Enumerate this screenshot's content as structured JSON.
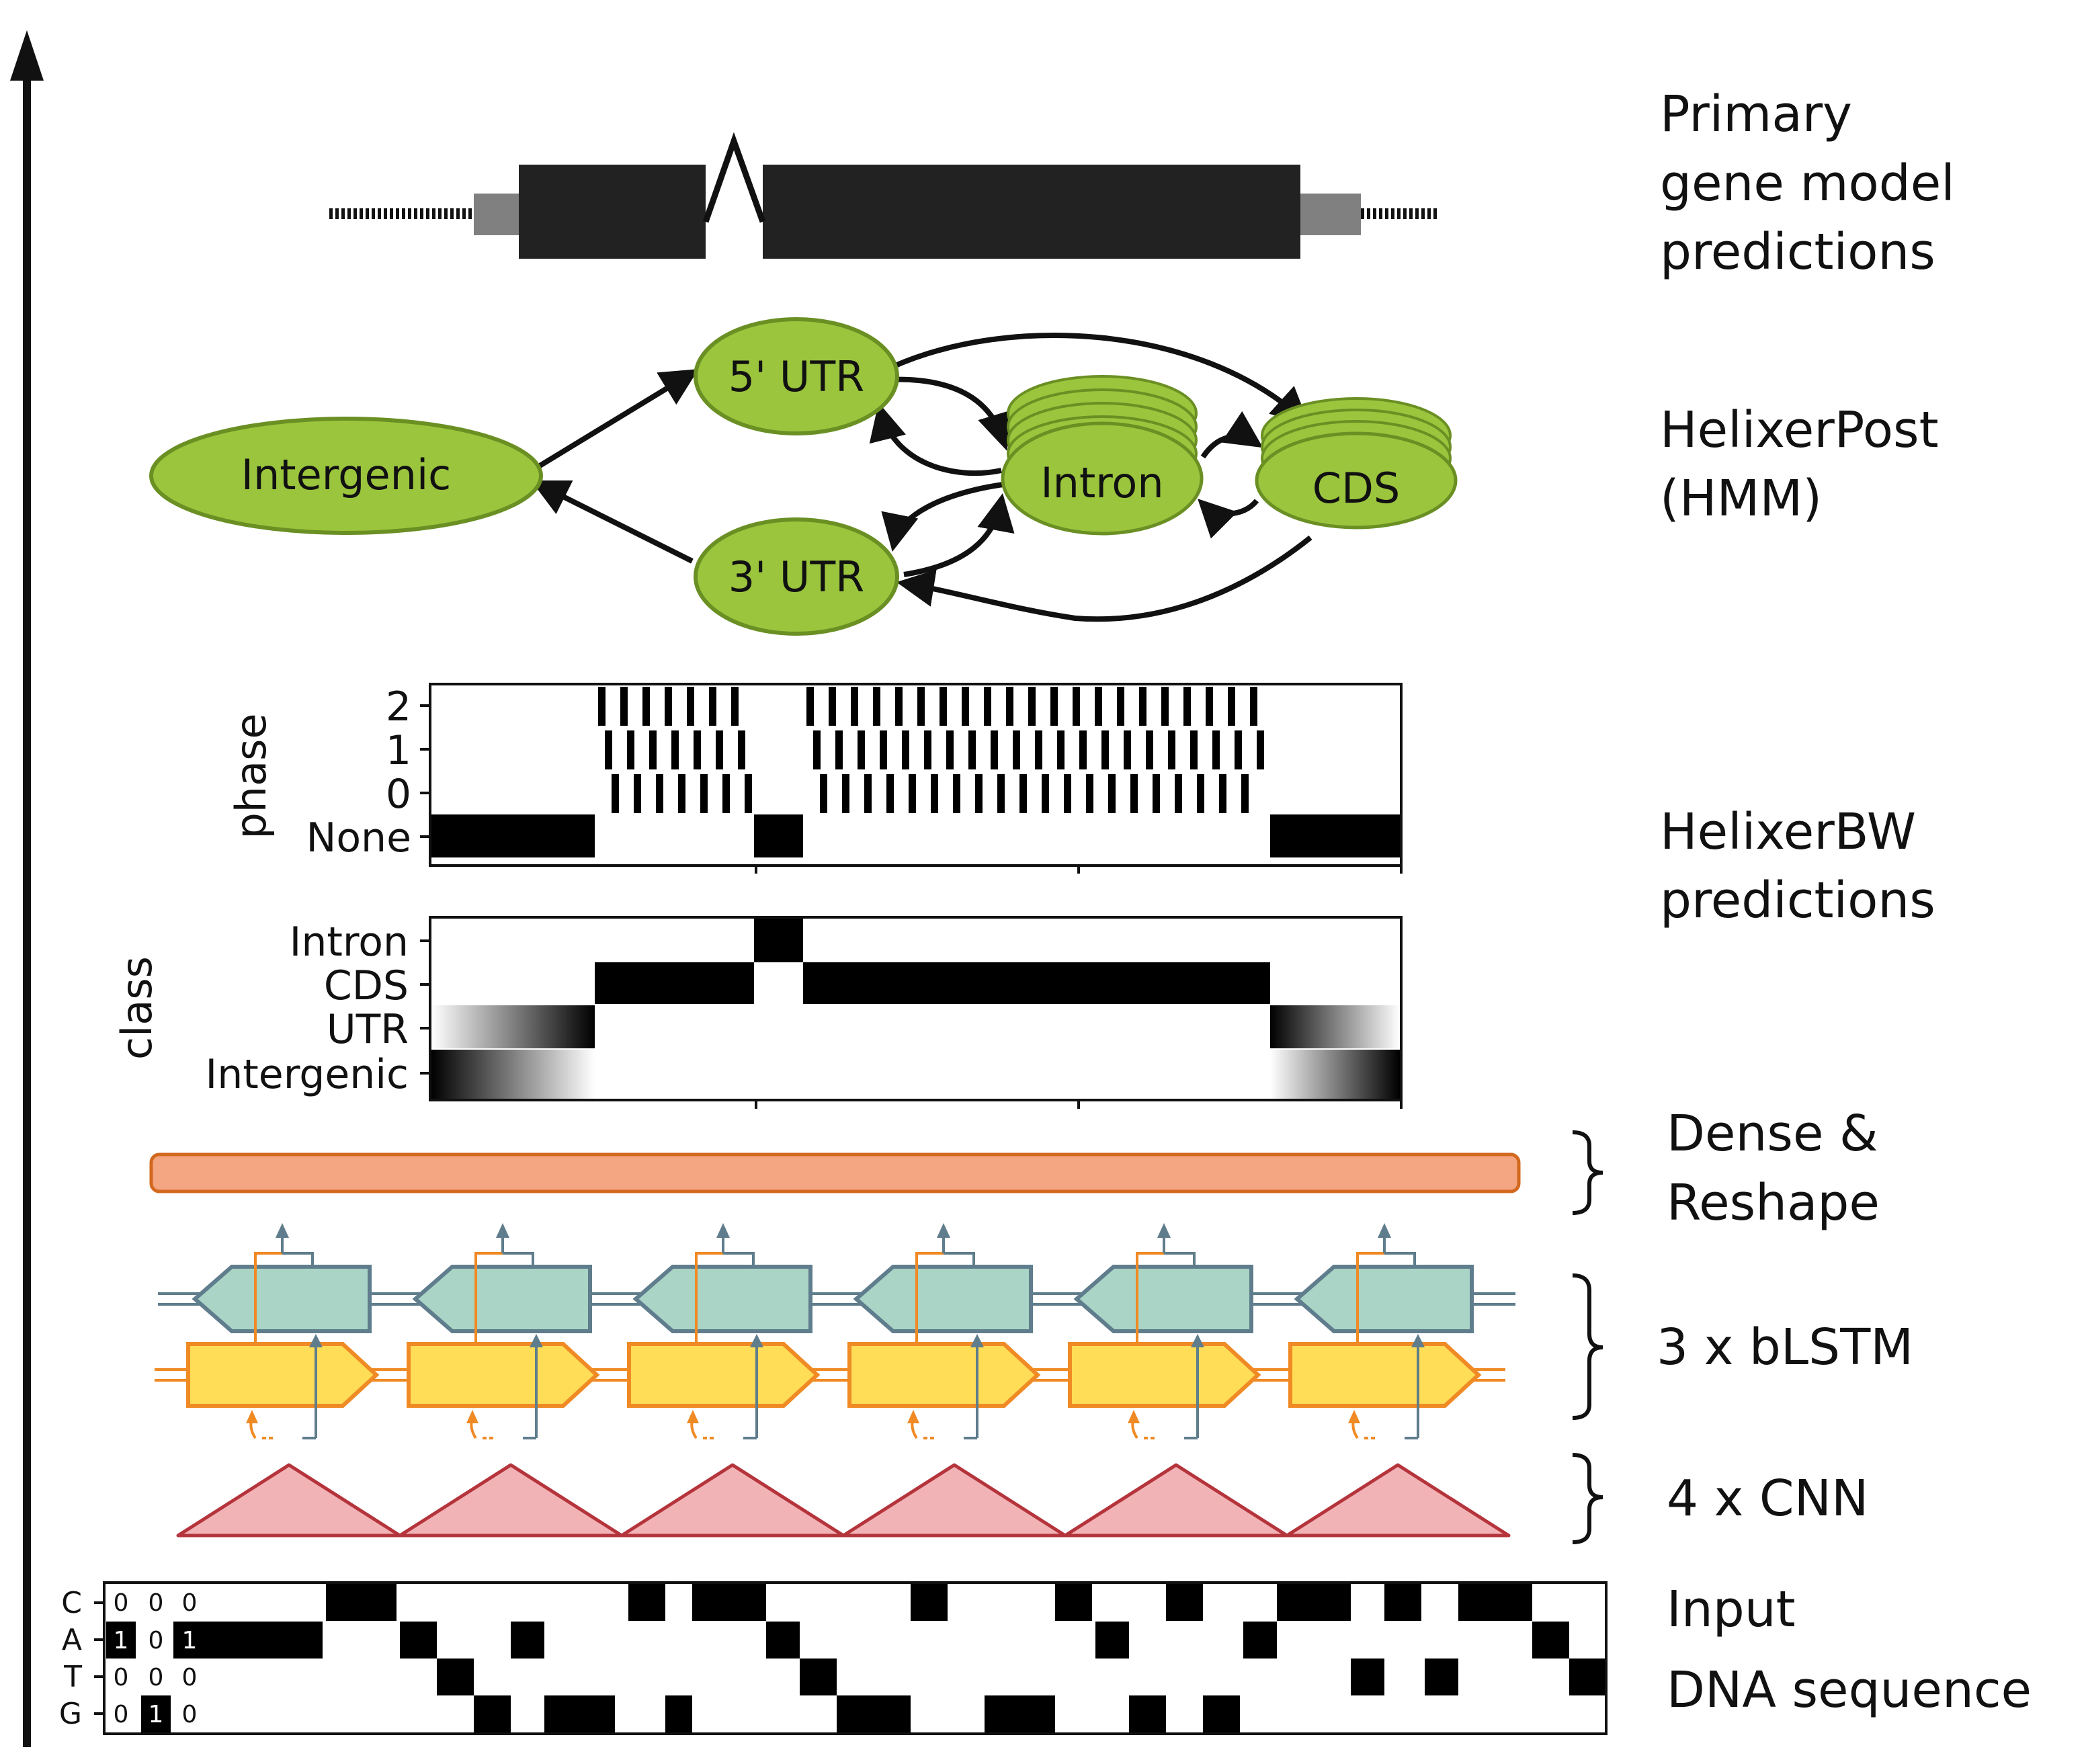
{
  "labels": {
    "gene_model": [
      "Primary",
      "gene model",
      "predictions"
    ],
    "helixer_post": [
      "HelixerPost",
      "(HMM)"
    ],
    "helixer_bw": [
      "HelixerBW",
      "predictions"
    ],
    "dense": [
      "Dense &",
      "Reshape"
    ],
    "blstm": "3 x bLSTM",
    "cnn": "4 x CNN",
    "input": [
      "Input",
      "DNA sequence"
    ]
  },
  "hmm_states": {
    "intergenic": "Intergenic",
    "utr5": "5' UTR",
    "utr3": "3' UTR",
    "intron": "Intron",
    "cds": "CDS"
  },
  "phase_plot": {
    "ylabel": "phase",
    "ticks": [
      "2",
      "1",
      "0",
      "None"
    ]
  },
  "class_plot": {
    "ylabel": "class",
    "ticks": [
      "Intron",
      "CDS",
      "UTR",
      "Intergenic"
    ]
  },
  "sequence": {
    "bases": [
      "C",
      "A",
      "T",
      "G"
    ],
    "first_columns": [
      [
        "0",
        "0",
        "0"
      ],
      [
        "1",
        "0",
        "1"
      ],
      [
        "0",
        "0",
        "0"
      ],
      [
        "0",
        "1",
        "0"
      ]
    ]
  },
  "colors": {
    "hmm_node": "#9bc53d",
    "hmm_node_stroke": "#6a8f23",
    "dense": "#f4a582",
    "dense_stroke": "#d2691e",
    "lstm_back": "#a9d4c6",
    "lstm_back_stroke": "#5f7d8c",
    "lstm_fwd": "#ffdd57",
    "lstm_fwd_stroke": "#f08a24",
    "cnn": "#f1b3b6",
    "cnn_stroke": "#b5343c"
  }
}
